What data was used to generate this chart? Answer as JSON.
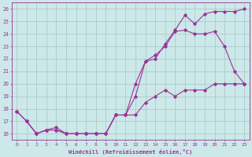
{
  "xlabel": "Windchill (Refroidissement éolien,°C)",
  "background_color": "#cce8e8",
  "grid_color": "#aacccc",
  "line_color": "#993399",
  "xlim": [
    -0.5,
    23.5
  ],
  "ylim": [
    15.5,
    26.5
  ],
  "yticks": [
    16,
    17,
    18,
    19,
    20,
    21,
    22,
    23,
    24,
    25,
    26
  ],
  "xticks": [
    0,
    1,
    2,
    3,
    4,
    5,
    6,
    7,
    8,
    9,
    10,
    11,
    12,
    13,
    14,
    15,
    16,
    17,
    18,
    19,
    20,
    21,
    22,
    23
  ],
  "line1_x": [
    1,
    2,
    3,
    4,
    5,
    6,
    7,
    8,
    9,
    10,
    11,
    12,
    13,
    14,
    15,
    16,
    17,
    18,
    19,
    20,
    21,
    22,
    23
  ],
  "line1_y": [
    17.0,
    16.0,
    16.3,
    16.3,
    16.0,
    16.0,
    16.0,
    16.0,
    16.0,
    17.5,
    17.5,
    17.5,
    18.5,
    19.0,
    19.5,
    19.0,
    19.5,
    19.5,
    19.5,
    20.0,
    20.0,
    20.0,
    20.0
  ],
  "line2_x": [
    0,
    1,
    2,
    3,
    4,
    5,
    6,
    7,
    8,
    9,
    10,
    11,
    12,
    13,
    14,
    15,
    16,
    17,
    18,
    19,
    20,
    21,
    22,
    23
  ],
  "line2_y": [
    17.8,
    17.0,
    16.0,
    16.3,
    16.5,
    16.0,
    16.0,
    16.0,
    16.0,
    16.0,
    17.5,
    17.5,
    20.0,
    21.8,
    22.3,
    23.0,
    24.2,
    24.3,
    24.0,
    24.0,
    24.2,
    23.0,
    21.0,
    20.0
  ],
  "line3_x": [
    0,
    1,
    2,
    3,
    4,
    5,
    6,
    7,
    8,
    9,
    10,
    11,
    12,
    13,
    14,
    15,
    16,
    17,
    18,
    19,
    20,
    21,
    22,
    23
  ],
  "line3_y": [
    17.8,
    17.0,
    16.0,
    16.3,
    16.3,
    16.0,
    16.0,
    16.0,
    16.0,
    16.0,
    17.5,
    17.5,
    19.0,
    21.8,
    22.0,
    23.2,
    24.3,
    25.5,
    24.8,
    25.6,
    25.8,
    25.8,
    25.8,
    26.0
  ]
}
